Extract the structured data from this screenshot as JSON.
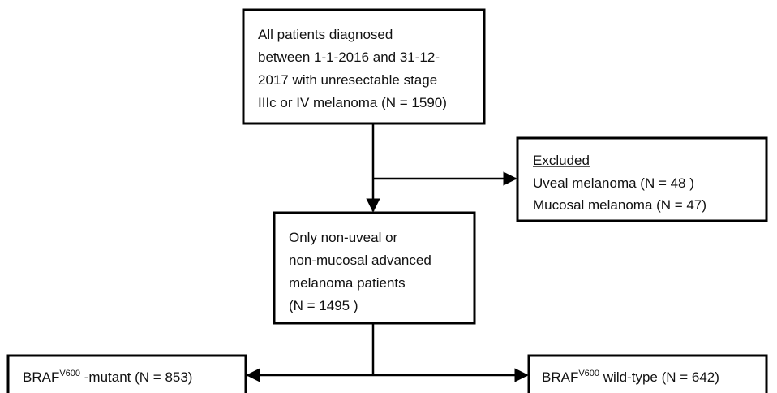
{
  "nodes": [
    {
      "lines": [
        "All patients diagnosed",
        "between 1-1-2016 and 31-12-",
        "2017 with unresectable stage",
        "IIIc or IV melanoma (N = 1590)"
      ]
    },
    {
      "heading": "Excluded",
      "lines": [
        "Uveal melanoma (N = 48 )",
        "Mucosal melanoma (N = 47)"
      ]
    },
    {
      "lines": [
        "Only non-uveal or",
        "non-mucosal advanced",
        "melanoma patients",
        "(N = 1495 )"
      ]
    },
    {
      "gene": "BRAF",
      "superscript": "V600",
      "rest": " -mutant (N = 853)"
    },
    {
      "gene": "BRAF",
      "superscript": "V600",
      "rest": " wild-type (N = 642)"
    }
  ]
}
